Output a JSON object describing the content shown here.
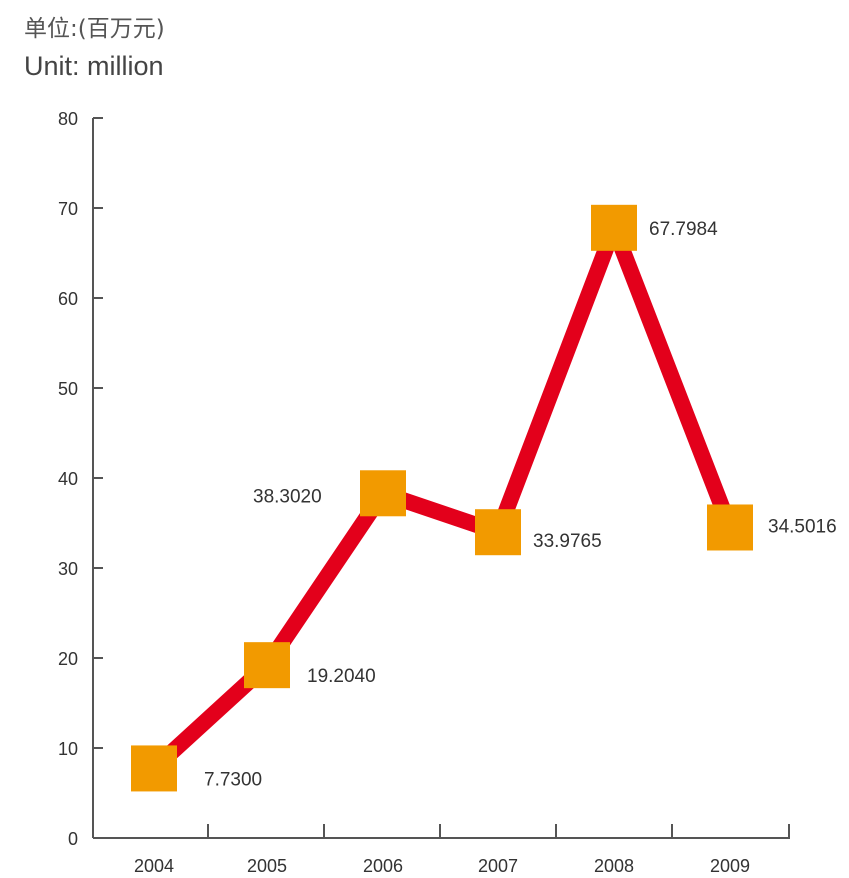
{
  "unit": {
    "cn": "单位:(百万元)",
    "en": "Unit: million"
  },
  "colors": {
    "line": "#e3001b",
    "marker": "#f29a00",
    "axis": "#555555",
    "text": "#333333"
  },
  "chart_data": {
    "type": "line",
    "categories": [
      "2004",
      "2005",
      "2006",
      "2007",
      "2008",
      "2009"
    ],
    "values": [
      7.73,
      19.204,
      38.302,
      33.9765,
      67.7984,
      34.5016
    ],
    "data_labels": [
      "7.7300",
      "19.2040",
      "38.3020",
      "33.9765",
      "67.7984",
      "34.5016"
    ],
    "y_ticks": [
      "0",
      "10",
      "20",
      "30",
      "40",
      "50",
      "60",
      "70",
      "80"
    ],
    "ylim": [
      0,
      80
    ],
    "grid": false,
    "legend": "none",
    "marker": "square"
  }
}
